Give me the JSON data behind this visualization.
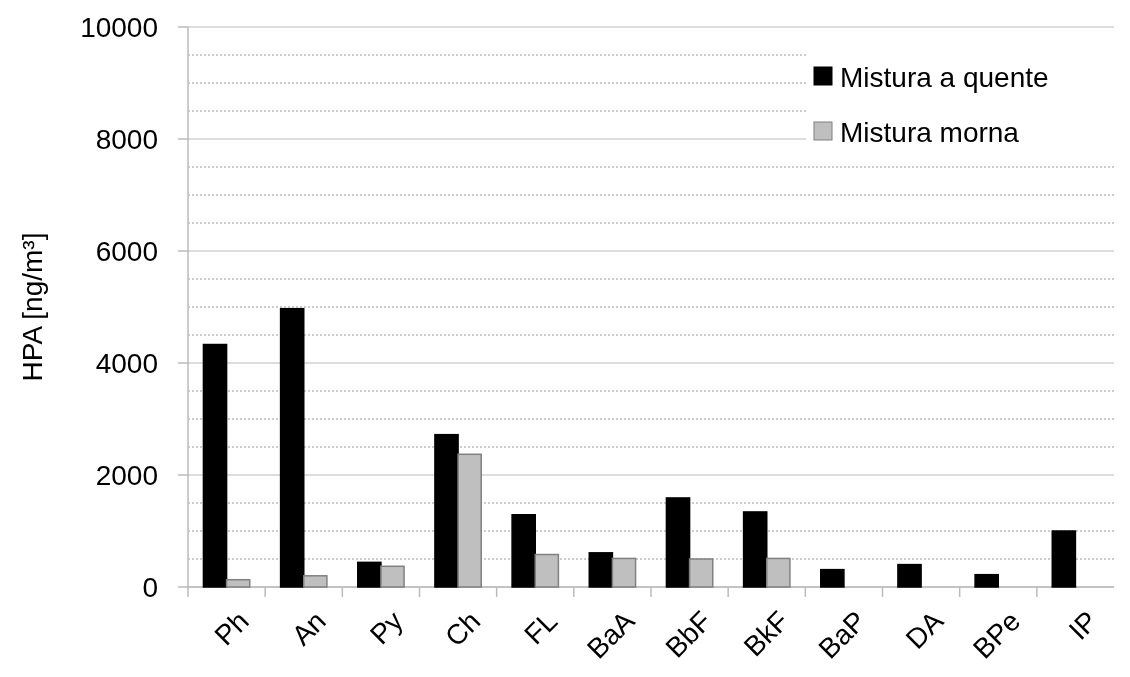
{
  "chart_data": {
    "type": "bar",
    "ylabel": "HPA [ng/m³]",
    "categories": [
      "Ph",
      "An",
      "Py",
      "Ch",
      "FL",
      "BaA",
      "BbF",
      "BkF",
      "BaP",
      "DA",
      "BPe",
      "IP"
    ],
    "series": [
      {
        "name": "Mistura a quente",
        "color": "#000000",
        "values": [
          4330,
          4970,
          440,
          2720,
          1290,
          610,
          1590,
          1340,
          310,
          400,
          220,
          1000
        ]
      },
      {
        "name": "Mistura morna",
        "color": "#bfbfbf",
        "values": [
          130,
          200,
          370,
          2370,
          580,
          510,
          500,
          510,
          null,
          null,
          null,
          null
        ]
      }
    ],
    "ylim": [
      0,
      10000
    ],
    "yticks": [
      0,
      2000,
      4000,
      6000,
      8000,
      10000
    ],
    "grid": "y",
    "legend": "top right"
  }
}
